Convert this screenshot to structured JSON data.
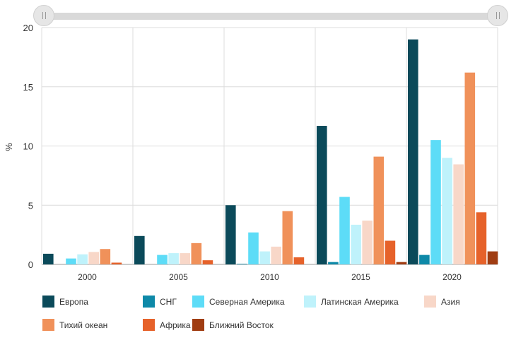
{
  "chart_data": {
    "type": "bar",
    "ylabel": "%",
    "ylim": [
      0,
      20
    ],
    "yticks": [
      0,
      5,
      10,
      15,
      20
    ],
    "categories": [
      "2000",
      "2005",
      "2010",
      "2015",
      "2020"
    ],
    "grid": true,
    "legend_position": "bottom",
    "series": [
      {
        "name": "Европа",
        "color": "#0b4a5a",
        "values": [
          0.9,
          2.4,
          5.0,
          11.7,
          19.0
        ]
      },
      {
        "name": "СНГ",
        "color": "#0e89a8",
        "values": [
          0.0,
          0.0,
          0.05,
          0.2,
          0.8
        ]
      },
      {
        "name": "Северная Америка",
        "color": "#5ddcf7",
        "values": [
          0.5,
          0.8,
          2.7,
          5.7,
          10.5
        ]
      },
      {
        "name": "Латинская Америка",
        "color": "#bff2fb",
        "values": [
          0.85,
          0.95,
          1.1,
          3.35,
          9.0
        ]
      },
      {
        "name": "Азия",
        "color": "#f8d7c8",
        "values": [
          1.05,
          0.95,
          1.5,
          3.7,
          8.45
        ]
      },
      {
        "name": "Тихий океан",
        "color": "#f0915a",
        "values": [
          1.3,
          1.8,
          4.5,
          9.1,
          16.2
        ]
      },
      {
        "name": "Африка",
        "color": "#e6622a",
        "values": [
          0.15,
          0.35,
          0.6,
          2.0,
          4.4
        ]
      },
      {
        "name": "Ближний Восток",
        "color": "#a03d12",
        "values": [
          0.0,
          0.0,
          0.0,
          0.2,
          1.1
        ]
      }
    ]
  }
}
